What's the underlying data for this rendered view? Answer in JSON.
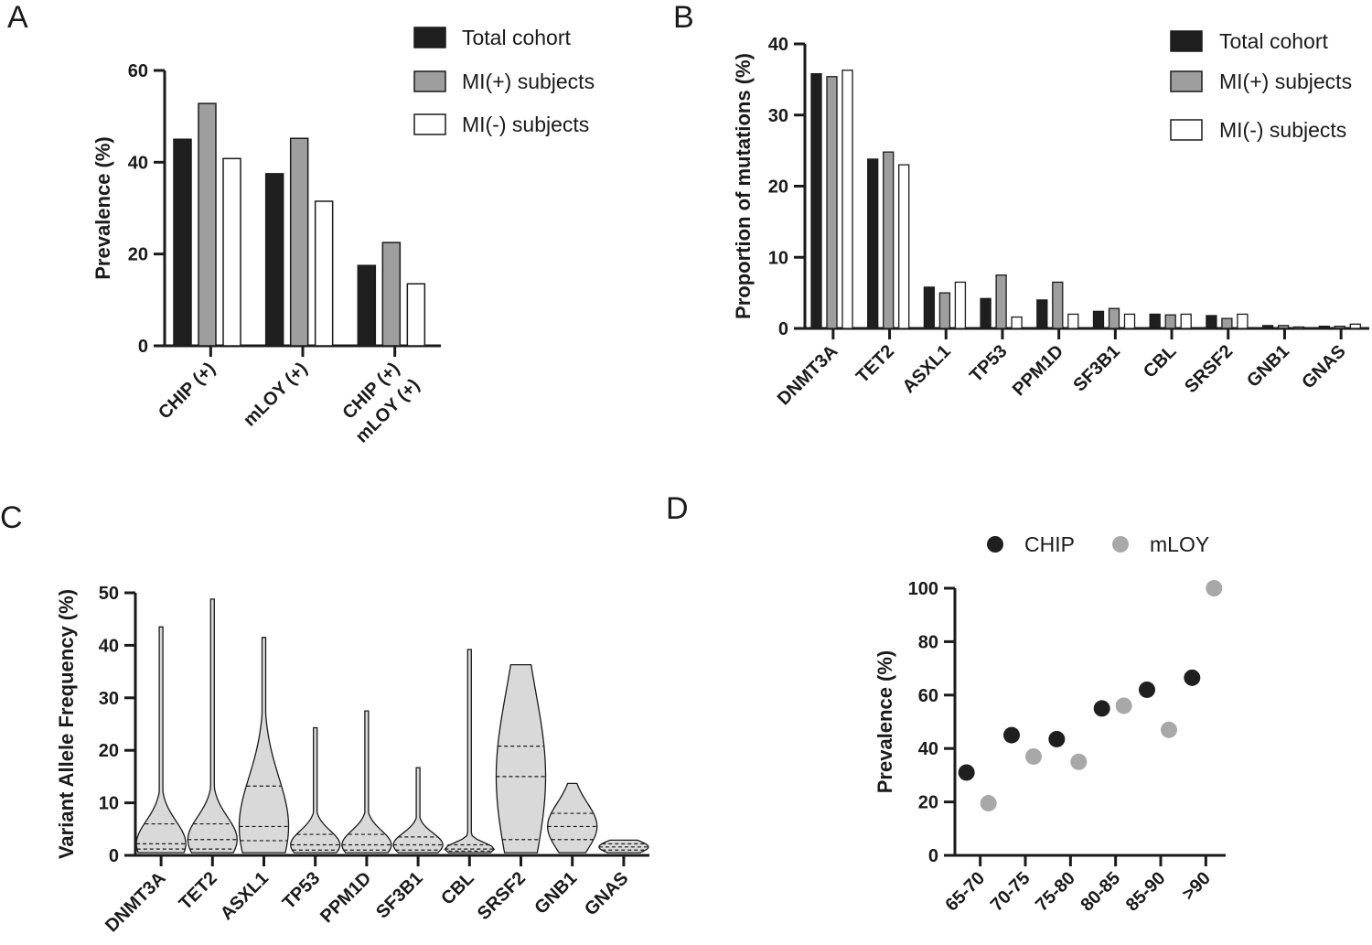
{
  "panels": {
    "a": {
      "letter": "A"
    },
    "b": {
      "letter": "B"
    },
    "c": {
      "letter": "C"
    },
    "d": {
      "letter": "D"
    }
  },
  "colors": {
    "total": "#1f1f1f",
    "mi_pos": "#9e9e9e",
    "mi_neg": "#ffffff",
    "violin_fill": "#d9d9d9",
    "chip": "#1f1f1f",
    "mloy": "#a8a8a8"
  },
  "chart_data": [
    {
      "id": "A",
      "type": "bar",
      "ylabel": "Prevalence (%)",
      "ylim": [
        0,
        60
      ],
      "yticks": [
        0,
        20,
        40,
        60
      ],
      "categories": [
        "CHIP (+)",
        "mLOY (+)",
        "CHIP (+)\nmLOY (+)"
      ],
      "category_lines": [
        [
          "CHIP (+)"
        ],
        [
          "mLOY (+)"
        ],
        [
          "CHIP (+)",
          "mLOY (+)"
        ]
      ],
      "series": [
        {
          "name": "Total cohort",
          "values": [
            45,
            37.5,
            17.5
          ]
        },
        {
          "name": "MI(+) subjects",
          "values": [
            52.8,
            45.2,
            22.5
          ]
        },
        {
          "name": "MI(-) subjects",
          "values": [
            40.8,
            31.5,
            13.5
          ]
        }
      ],
      "legend": "top-right"
    },
    {
      "id": "B",
      "type": "bar",
      "ylabel": "Proportion of mutations (%)",
      "ylim": [
        0,
        40
      ],
      "yticks": [
        0,
        10,
        20,
        30,
        40
      ],
      "categories": [
        "DNMT3A",
        "TET2",
        "ASXL1",
        "TP53",
        "PPM1D",
        "SF3B1",
        "CBL",
        "SRSF2",
        "GNB1",
        "GNAS"
      ],
      "series": [
        {
          "name": "Total cohort",
          "values": [
            35.8,
            23.8,
            5.8,
            4.2,
            4.0,
            2.4,
            2.0,
            1.8,
            0.4,
            0.3
          ]
        },
        {
          "name": "MI(+) subjects",
          "values": [
            35.4,
            24.8,
            5.0,
            7.5,
            6.5,
            2.8,
            1.9,
            1.4,
            0.4,
            0.3
          ]
        },
        {
          "name": "MI(-) subjects",
          "values": [
            36.3,
            23.0,
            6.5,
            1.6,
            2.0,
            2.0,
            2.0,
            2.0,
            0.2,
            0.6
          ]
        }
      ],
      "legend": "top-right"
    },
    {
      "id": "C",
      "type": "violin",
      "ylabel": "Variant Allele Frequency (%)",
      "ylim": [
        0,
        50
      ],
      "yticks": [
        0,
        10,
        20,
        30,
        40,
        50
      ],
      "categories": [
        "DNMT3A",
        "TET2",
        "ASXL1",
        "TP53",
        "PPM1D",
        "SF3B1",
        "CBL",
        "SRSF2",
        "GNB1",
        "GNAS"
      ],
      "violins": [
        {
          "min": 0.5,
          "max": 43.5,
          "q1": 1.2,
          "median": 2.2,
          "q3": 6.0
        },
        {
          "min": 0.5,
          "max": 48.8,
          "q1": 1.2,
          "median": 3.0,
          "q3": 6.0
        },
        {
          "min": 0.5,
          "max": 41.5,
          "q1": 2.8,
          "median": 5.5,
          "q3": 13.2
        },
        {
          "min": 0.5,
          "max": 24.3,
          "q1": 1.0,
          "median": 2.0,
          "q3": 4.0
        },
        {
          "min": 0.5,
          "max": 27.5,
          "q1": 1.0,
          "median": 2.0,
          "q3": 4.0
        },
        {
          "min": 0.5,
          "max": 16.7,
          "q1": 1.0,
          "median": 2.0,
          "q3": 3.5
        },
        {
          "min": 0.5,
          "max": 39.2,
          "q1": 0.8,
          "median": 1.2,
          "q3": 2.0
        },
        {
          "min": 0.5,
          "max": 36.3,
          "q1": 3.0,
          "median": 15.0,
          "q3": 20.8
        },
        {
          "min": 0.5,
          "max": 13.7,
          "q1": 3.0,
          "median": 5.5,
          "q3": 8.0
        },
        {
          "min": 0.5,
          "max": 2.9,
          "q1": 1.0,
          "median": 1.6,
          "q3": 2.2
        }
      ]
    },
    {
      "id": "D",
      "type": "scatter",
      "ylabel": "Prevalence (%)",
      "ylim": [
        0,
        100
      ],
      "yticks": [
        0,
        20,
        40,
        60,
        80,
        100
      ],
      "categories": [
        "65-70",
        "70-75",
        "75-80",
        "80-85",
        "85-90",
        ">90"
      ],
      "series": [
        {
          "name": "CHIP",
          "values": [
            31,
            45,
            43.5,
            55,
            62,
            66.5
          ]
        },
        {
          "name": "mLOY",
          "values": [
            19.5,
            37,
            35,
            56,
            47,
            100
          ]
        }
      ],
      "legend": "top"
    }
  ]
}
